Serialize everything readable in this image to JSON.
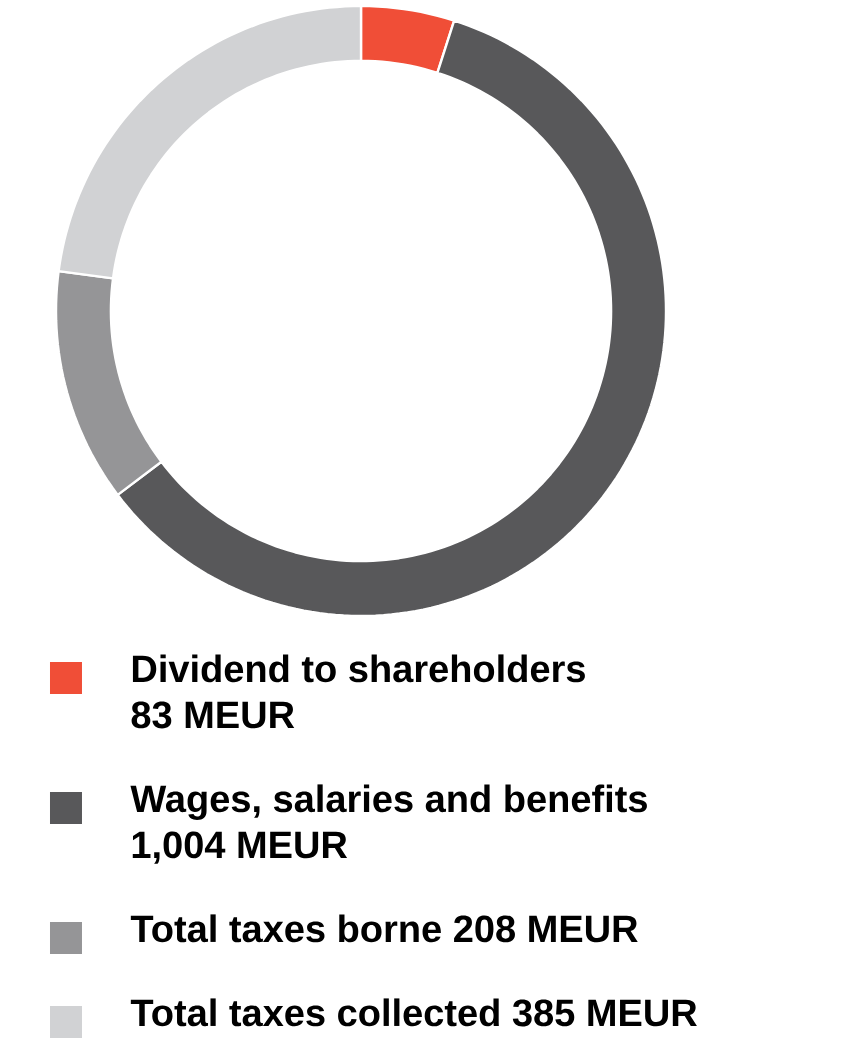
{
  "chart_data": {
    "type": "donut",
    "categories": [
      "Dividend to shareholders",
      "Wages, salaries and benefits",
      "Total taxes borne",
      "Total taxes collected"
    ],
    "values": [
      83,
      1004,
      208,
      385
    ],
    "value_labels": [
      "83 MEUR",
      "1,004 MEUR",
      "208 MEUR",
      "385 MEUR"
    ],
    "colors": [
      "#f04e37",
      "#58585a",
      "#959597",
      "#d1d2d4"
    ],
    "legend": "bottom"
  }
}
